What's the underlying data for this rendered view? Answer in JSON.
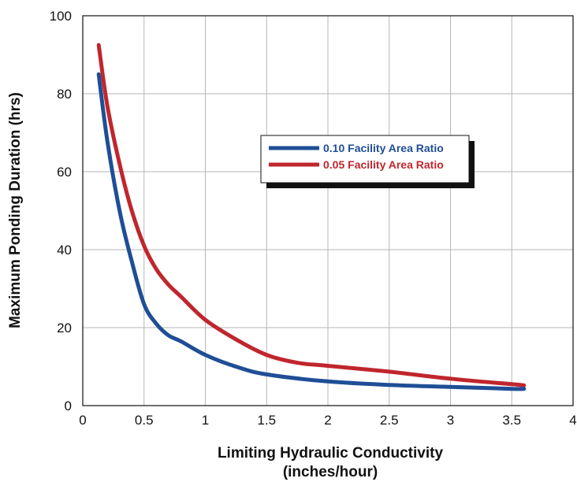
{
  "chart_data": {
    "type": "line",
    "xlabel_line1": "Limiting Hydraulic Conductivity",
    "xlabel_line2": "(inches/hour)",
    "ylabel": "Maximum Ponding Duration (hrs)",
    "xlim": [
      0,
      4
    ],
    "ylim": [
      0,
      100
    ],
    "x_ticks": [
      "0",
      "0.5",
      "1",
      "1.5",
      "2",
      "2.5",
      "3",
      "3.5",
      "4"
    ],
    "y_ticks": [
      "0",
      "20",
      "40",
      "60",
      "80",
      "100"
    ],
    "grid": true,
    "legend_position": "center-right",
    "series": [
      {
        "name": "0.10 Facility Area Ratio",
        "color": "#1f4e96",
        "x": [
          0.13,
          0.2,
          0.3,
          0.4,
          0.5,
          0.6,
          0.7,
          0.8,
          1.0,
          1.25,
          1.5,
          2.0,
          2.5,
          3.0,
          3.5,
          3.6
        ],
        "y": [
          85,
          68,
          50,
          37,
          26,
          21,
          18,
          16.5,
          13,
          10,
          8,
          6.2,
          5.3,
          4.8,
          4.3,
          4.3
        ]
      },
      {
        "name": "0.05 Facility Area Ratio",
        "color": "#c0262d",
        "x": [
          0.13,
          0.2,
          0.3,
          0.4,
          0.5,
          0.6,
          0.7,
          0.8,
          1.0,
          1.25,
          1.5,
          1.75,
          2.0,
          2.5,
          3.0,
          3.5,
          3.6
        ],
        "y": [
          92.5,
          77,
          62,
          50,
          41,
          35,
          31,
          28,
          22,
          17,
          13,
          11,
          10.2,
          8.7,
          6.9,
          5.5,
          5.2
        ]
      }
    ]
  }
}
